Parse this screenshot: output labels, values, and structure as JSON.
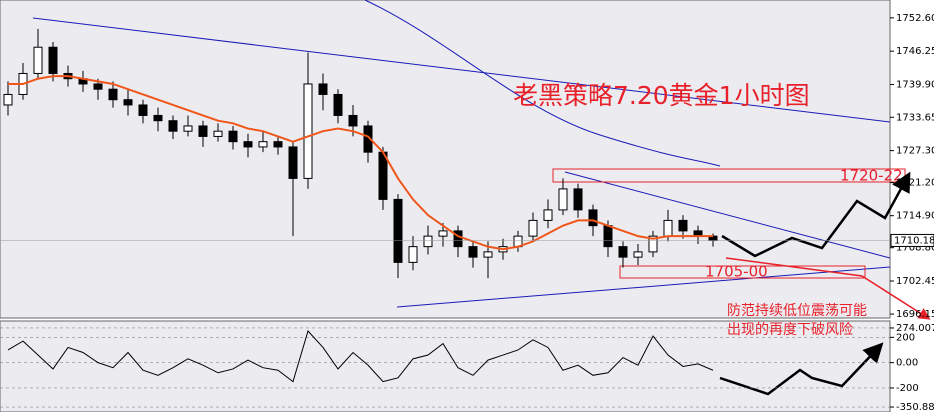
{
  "title": "老黑策略7.20黄金1小时图",
  "notes": [
    "防范持续低位震荡可能",
    "出现的再度下破风险"
  ],
  "levels": [
    "1720-22",
    "1705-00"
  ],
  "chart_data": [
    {
      "type": "candlestick",
      "open": [
        1736,
        1738,
        1742,
        1747,
        1742,
        1741,
        1740,
        1739,
        1737,
        1736,
        1734,
        1733,
        1731,
        1732,
        1730,
        1731,
        1729,
        1728,
        1729,
        1728,
        1722,
        1740,
        1738,
        1734,
        1732,
        1727,
        1718,
        1706,
        1709,
        1711,
        1712,
        1709,
        1707,
        1708,
        1709,
        1711,
        1714,
        1716,
        1720,
        1716,
        1713,
        1709,
        1707,
        1708,
        1711,
        1714,
        1712,
        1711
      ],
      "high": [
        1740.5,
        1744,
        1750.5,
        1748,
        1743.5,
        1742.5,
        1741,
        1740.5,
        1739,
        1737,
        1735.5,
        1734,
        1734,
        1733,
        1732.5,
        1732,
        1730.5,
        1731,
        1730,
        1729,
        1746,
        1742,
        1739,
        1736,
        1733,
        1728,
        1719,
        1711,
        1713,
        1713.5,
        1713,
        1710,
        1710,
        1710.5,
        1712,
        1715.5,
        1718,
        1722,
        1721,
        1717,
        1714,
        1710,
        1709.5,
        1712,
        1716,
        1715,
        1713,
        1711.5
      ],
      "low": [
        1734,
        1737,
        1741,
        1740.5,
        1739.5,
        1738.5,
        1737,
        1735.5,
        1734,
        1732.5,
        1731,
        1729.5,
        1730,
        1728,
        1729,
        1727.5,
        1726,
        1727,
        1726.5,
        1711,
        1720,
        1735,
        1732.5,
        1730,
        1725,
        1716,
        1703,
        1704.5,
        1707.5,
        1709,
        1707,
        1705,
        1703,
        1706.5,
        1708,
        1710,
        1712.5,
        1715,
        1714.5,
        1711,
        1707,
        1705,
        1705.5,
        1707,
        1710,
        1710.5,
        1709.5,
        1709
      ],
      "close": [
        1738,
        1742,
        1747,
        1742,
        1741,
        1740,
        1739,
        1737,
        1736,
        1734,
        1733,
        1731,
        1732,
        1730,
        1731,
        1729,
        1728,
        1729,
        1728,
        1722,
        1740,
        1738,
        1734,
        1732,
        1727,
        1718,
        1706,
        1709,
        1711,
        1712,
        1709,
        1707,
        1708,
        1709,
        1711,
        1714,
        1716,
        1720,
        1716,
        1713,
        1709,
        1707,
        1708,
        1711,
        1714,
        1712,
        1711,
        1710.2
      ],
      "ma_values": [
        1740,
        1740,
        1741,
        1741.5,
        1741.5,
        1741,
        1740.5,
        1740,
        1739,
        1738,
        1737,
        1736,
        1735,
        1734,
        1733,
        1732.5,
        1731.5,
        1731,
        1730,
        1729,
        1730,
        1731,
        1731.5,
        1731,
        1730,
        1727,
        1722,
        1718,
        1715,
        1713,
        1711,
        1710,
        1709,
        1708.5,
        1709,
        1710,
        1711.5,
        1713,
        1714,
        1714,
        1713,
        1712,
        1711,
        1710.5,
        1711,
        1711,
        1711,
        1711
      ],
      "ma_color": "#f0561a",
      "up_color": "#ffffff",
      "down_color": "#000000",
      "ylim": [
        1695.4,
        1756.0
      ],
      "yticks": [
        {
          "value": 1752.6,
          "label": "1752.60"
        },
        {
          "value": 1746.25,
          "label": "1746.25"
        },
        {
          "value": 1739.9,
          "label": "1739.90"
        },
        {
          "value": 1733.65,
          "label": "1733.65"
        },
        {
          "value": 1727.3,
          "label": "1727.30"
        },
        {
          "value": 1721.2,
          "label": "1721.20"
        },
        {
          "value": 1714.9,
          "label": "1714.90"
        },
        {
          "value": 1708.8,
          "label": "1708.80"
        },
        {
          "value": 1702.45,
          "label": "1702.45"
        },
        {
          "value": 1696.15,
          "label": "1696.15"
        }
      ],
      "current_price": 1710.18
    },
    {
      "type": "line",
      "values": [
        100,
        170,
        60,
        -50,
        120,
        80,
        0,
        -40,
        80,
        -60,
        -100,
        -40,
        30,
        -20,
        -80,
        -50,
        20,
        -40,
        -60,
        -150,
        250,
        120,
        -50,
        80,
        -20,
        -150,
        -120,
        30,
        60,
        150,
        -40,
        -100,
        20,
        60,
        100,
        180,
        120,
        -60,
        -20,
        -100,
        -80,
        40,
        -20,
        210,
        60,
        -30,
        -10,
        -60
      ],
      "color": "#000000",
      "ylim": [
        -390,
        329
      ],
      "yticks": [
        274.0076,
        200,
        {
          "value": 0,
          "label": "0.00"
        },
        -200,
        -350.881
      ]
    }
  ]
}
